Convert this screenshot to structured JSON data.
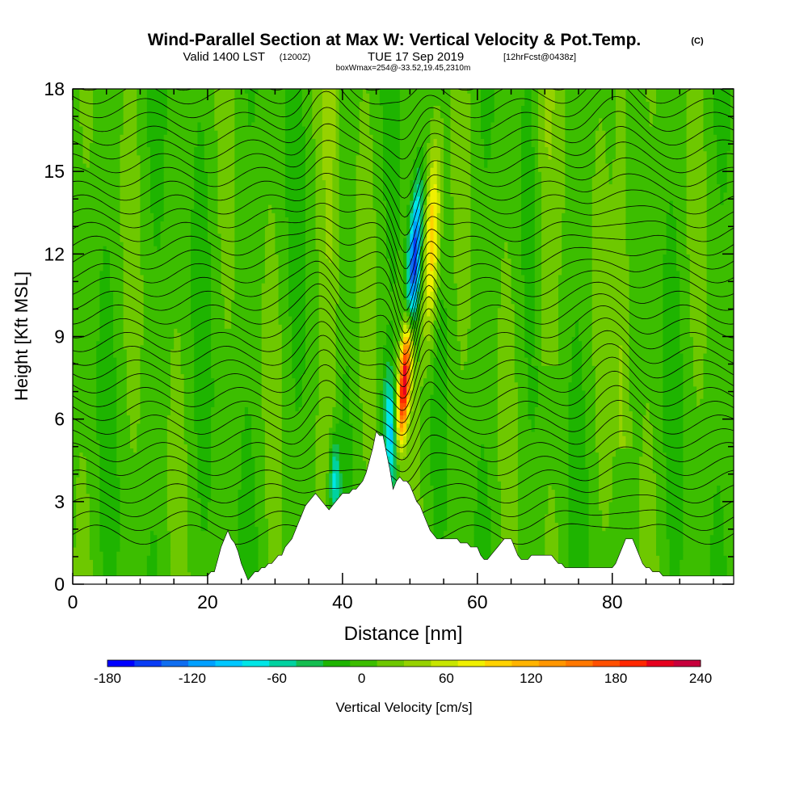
{
  "title": {
    "main": "Wind-Parallel Section at Max W: Vertical Velocity & Pot.Temp.",
    "copyright": "(C)",
    "valid_prefix": "Valid 1400 LST",
    "valid_utc": "(1200Z)",
    "valid_date": "TUE 17 Sep 2019",
    "forecast": "[12hrFcst@0438z]",
    "box_info": "boxWmax=254@-33.52,19.45,2310m"
  },
  "colorbar": {
    "label": "Vertical Velocity [cm/s]",
    "tick_labels": [
      "-180",
      "-120",
      "-60",
      "0",
      "60",
      "120",
      "180",
      "240"
    ],
    "levels": [
      -180,
      -160,
      -140,
      -120,
      -100,
      -80,
      -60,
      -40,
      -20,
      0,
      20,
      40,
      60,
      80,
      100,
      120,
      140,
      160,
      180,
      200,
      220,
      240
    ],
    "colors": [
      "#0000ff",
      "#0a3cf5",
      "#0f6ef0",
      "#00a0ff",
      "#00c8ff",
      "#00e6e6",
      "#00d2a0",
      "#14be50",
      "#1eb400",
      "#3cbe00",
      "#6ec800",
      "#96d200",
      "#c8e600",
      "#f0f000",
      "#ffd200",
      "#ffb400",
      "#ff9600",
      "#ff7800",
      "#ff5000",
      "#ff2800",
      "#e6001e",
      "#c8003c"
    ]
  },
  "chart_data": {
    "type": "heatmap",
    "xlabel": "Distance [nm]",
    "ylabel": "Height [Kft MSL]",
    "x_ticks": [
      0,
      20,
      40,
      60,
      80
    ],
    "y_ticks": [
      0,
      3,
      6,
      9,
      12,
      15,
      18
    ],
    "xlim": [
      0,
      98
    ],
    "ylim": [
      0,
      18
    ],
    "variable": "Vertical Velocity [cm/s]",
    "contour_variable": "Pot.Temp.",
    "max_w": 254,
    "updraft_core": {
      "x": 48.8,
      "y_range": [
        5.5,
        9
      ],
      "w_max": 240
    },
    "downdraft_core": {
      "x": 50.5,
      "y_range": [
        9,
        13.5
      ],
      "w_min": -180
    },
    "terrain_profile": [
      [
        0,
        0.3
      ],
      [
        20,
        0.3
      ],
      [
        21,
        0.5
      ],
      [
        22,
        1.3
      ],
      [
        23,
        1.9
      ],
      [
        24,
        1.5
      ],
      [
        25,
        0.8
      ],
      [
        26,
        0.1
      ],
      [
        27,
        0.4
      ],
      [
        28,
        0.6
      ],
      [
        29,
        0.7
      ],
      [
        30,
        0.9
      ],
      [
        31,
        1.1
      ],
      [
        32,
        1.5
      ],
      [
        33,
        1.9
      ],
      [
        34,
        2.6
      ],
      [
        35,
        3.0
      ],
      [
        36,
        3.3
      ],
      [
        37,
        3.0
      ],
      [
        38,
        2.7
      ],
      [
        39,
        3.0
      ],
      [
        40,
        3.3
      ],
      [
        42,
        3.4
      ],
      [
        43,
        3.7
      ],
      [
        44,
        4.5
      ],
      [
        45,
        5.5
      ],
      [
        46,
        5.4
      ],
      [
        47,
        4.2
      ],
      [
        47.5,
        3.5
      ],
      [
        48.5,
        3.9
      ],
      [
        50,
        3.6
      ],
      [
        51,
        3.0
      ],
      [
        52,
        2.6
      ],
      [
        53,
        2.0
      ],
      [
        54,
        1.7
      ],
      [
        55,
        1.6
      ],
      [
        57,
        1.6
      ],
      [
        58,
        1.5
      ],
      [
        60,
        1.3
      ],
      [
        61,
        0.9
      ],
      [
        62,
        1.0
      ],
      [
        64,
        1.6
      ],
      [
        65,
        1.6
      ],
      [
        66,
        1.0
      ],
      [
        67,
        0.9
      ],
      [
        68,
        1.0
      ],
      [
        70,
        1.0
      ],
      [
        71,
        1.1
      ],
      [
        72,
        0.8
      ],
      [
        73,
        0.6
      ],
      [
        75,
        0.6
      ],
      [
        80,
        0.6
      ],
      [
        81,
        1.0
      ],
      [
        82,
        1.6
      ],
      [
        83,
        1.6
      ],
      [
        84,
        1.0
      ],
      [
        85,
        0.6
      ],
      [
        88,
        0.3
      ],
      [
        98,
        0.3
      ]
    ]
  }
}
